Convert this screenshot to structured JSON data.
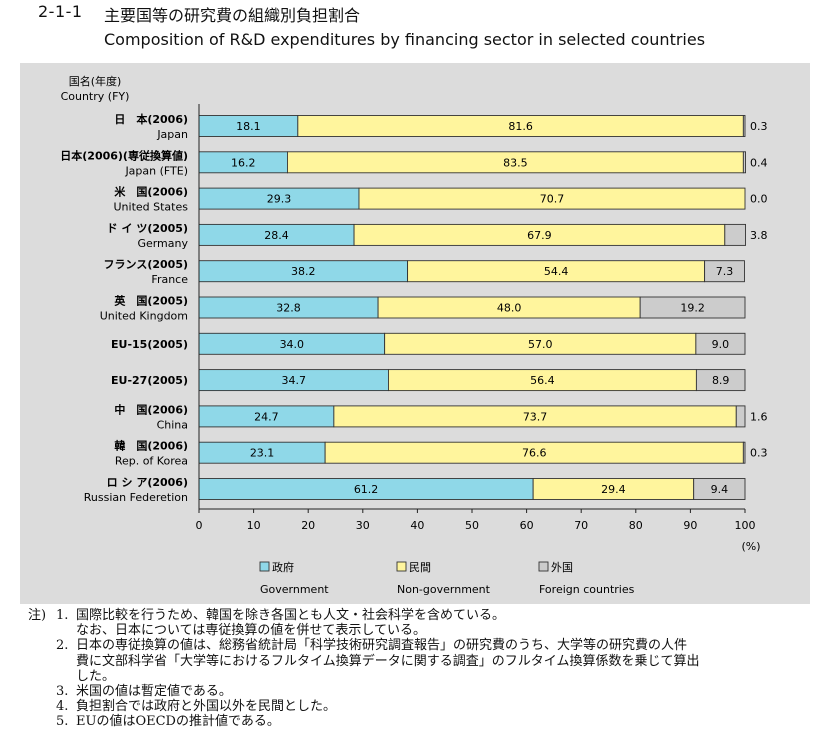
{
  "header": {
    "figure_number": "2-1-1",
    "title_ja": "主要国等の研究費の組織別負担割合",
    "title_en": "Composition of R&D expenditures by financing sector in selected countries"
  },
  "chart_data": {
    "type": "bar",
    "stacked": true,
    "orientation": "horizontal",
    "column_header": [
      "国名(年度)",
      "Country (FY)"
    ],
    "categories": [
      [
        "日　本(2006)",
        "Japan"
      ],
      [
        "日本(2006)(専従換算値)",
        "Japan (FTE)"
      ],
      [
        "米　国(2006)",
        "United States"
      ],
      [
        "ド イ ツ(2005)",
        "Germany"
      ],
      [
        "フランス(2005)",
        "France"
      ],
      [
        "英　国(2005)",
        "United Kingdom"
      ],
      [
        "EU-15(2005)"
      ],
      [
        "EU-27(2005)"
      ],
      [
        "中　国(2006)",
        "China"
      ],
      [
        "韓　国(2006)",
        "Rep. of Korea"
      ],
      [
        "ロ シ ア(2006)",
        "Russian Federetion"
      ]
    ],
    "series": [
      {
        "name": "政府",
        "name_en": "Government",
        "color": "#8fd8e8",
        "values": [
          18.1,
          16.2,
          29.3,
          28.4,
          38.2,
          32.8,
          34.0,
          34.7,
          24.7,
          23.1,
          61.2
        ]
      },
      {
        "name": "民間",
        "name_en": "Non-government",
        "color": "#fff59d",
        "values": [
          81.6,
          83.5,
          70.7,
          67.9,
          54.4,
          48.0,
          57.0,
          56.4,
          73.7,
          76.6,
          29.4
        ]
      },
      {
        "name": "外国",
        "name_en": "Foreign countries",
        "color": "#cccccc",
        "values": [
          0.3,
          0.4,
          0.0,
          3.8,
          7.3,
          19.2,
          9.0,
          8.9,
          1.6,
          0.3,
          9.4
        ]
      }
    ],
    "value_labels": [
      [
        "18.1",
        "81.6",
        "0.3"
      ],
      [
        "16.2",
        "83.5",
        "0.4"
      ],
      [
        "29.3",
        "70.7",
        "0.0"
      ],
      [
        "28.4",
        "67.9",
        "3.8"
      ],
      [
        "38.2",
        "54.4",
        "7.3"
      ],
      [
        "32.8",
        "48.0",
        "19.2"
      ],
      [
        "34.0",
        "57.0",
        "9.0"
      ],
      [
        "34.7",
        "56.4",
        "8.9"
      ],
      [
        "24.7",
        "73.7",
        "1.6"
      ],
      [
        "23.1",
        "76.6",
        "0.3"
      ],
      [
        "61.2",
        "29.4",
        "9.4"
      ]
    ],
    "xlim": [
      0,
      100
    ],
    "xticks": [
      0,
      10,
      20,
      30,
      40,
      50,
      60,
      70,
      80,
      90,
      100
    ],
    "xlabel": "(%)",
    "grid": false,
    "legend_position": "bottom"
  },
  "notes": {
    "prefix": "注)",
    "items": [
      {
        "num": "1.",
        "lines": [
          "国際比較を行うため、韓国を除き各国とも人文・社会科学を含めている。",
          "なお、日本については専従換算の値を併せて表示している。"
        ]
      },
      {
        "num": "2.",
        "lines": [
          "日本の専従換算の値は、総務省統計局「科学技術研究調査報告」の研究費のうち、大学等の研究費の人件",
          "費に文部科学省「大学等におけるフルタイム換算データに関する調査」のフルタイム換算係数を乗じて算出",
          "した。"
        ]
      },
      {
        "num": "3.",
        "lines": [
          "米国の値は暫定値である。"
        ]
      },
      {
        "num": "4.",
        "lines": [
          "負担割合では政府と外国以外を民間とした。"
        ]
      },
      {
        "num": "5.",
        "lines": [
          "EUの値はOECDの推計値である。"
        ]
      }
    ]
  }
}
